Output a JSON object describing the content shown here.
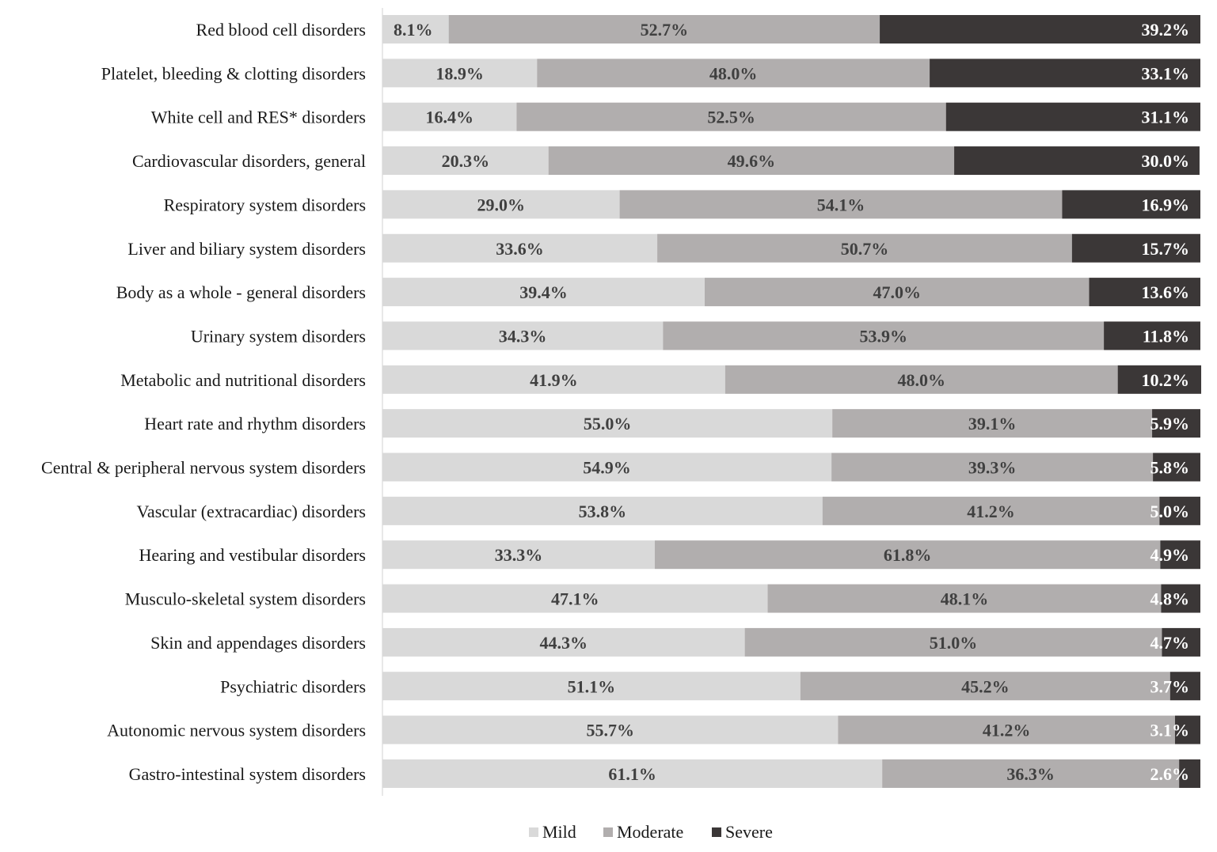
{
  "chart_data": {
    "type": "bar",
    "orientation": "horizontal",
    "stacked": true,
    "normalized": true,
    "title": "",
    "xlabel": "",
    "ylabel": "",
    "xlim": [
      0,
      100
    ],
    "grid": false,
    "legend_position": "bottom",
    "value_format": "percent_1dp",
    "categories": [
      "Red blood cell disorders",
      "Platelet, bleeding & clotting disorders",
      "White cell and RES* disorders",
      "Cardiovascular disorders, general",
      "Respiratory system disorders",
      "Liver and biliary system disorders",
      "Body as a whole - general disorders",
      "Urinary system disorders",
      "Metabolic and nutritional disorders",
      "Heart rate and rhythm disorders",
      "Central & peripheral nervous system disorders",
      "Vascular (extracardiac) disorders",
      "Hearing and vestibular disorders",
      "Musculo-skeletal system disorders",
      "Skin and appendages disorders",
      "Psychiatric disorders",
      "Autonomic nervous system disorders",
      "Gastro-intestinal system disorders"
    ],
    "series": [
      {
        "name": "Mild",
        "color": "#d9d9d9",
        "label_color": "#404040",
        "values": [
          8.1,
          18.9,
          16.4,
          20.3,
          29.0,
          33.6,
          39.4,
          34.3,
          41.9,
          55.0,
          54.9,
          53.8,
          33.3,
          47.1,
          44.3,
          51.1,
          55.7,
          61.1
        ]
      },
      {
        "name": "Moderate",
        "color": "#b1aeae",
        "label_color": "#404040",
        "values": [
          52.7,
          48.0,
          52.5,
          49.6,
          54.1,
          50.7,
          47.0,
          53.9,
          48.0,
          39.1,
          39.3,
          41.2,
          61.8,
          48.1,
          51.0,
          45.2,
          41.2,
          36.3
        ]
      },
      {
        "name": "Severe",
        "color": "#3b3737",
        "label_color": "#ffffff",
        "values": [
          39.2,
          33.1,
          31.1,
          30.0,
          16.9,
          15.7,
          13.6,
          11.8,
          10.2,
          5.9,
          5.8,
          5.0,
          4.9,
          4.8,
          4.7,
          3.7,
          3.1,
          2.6
        ]
      }
    ]
  }
}
